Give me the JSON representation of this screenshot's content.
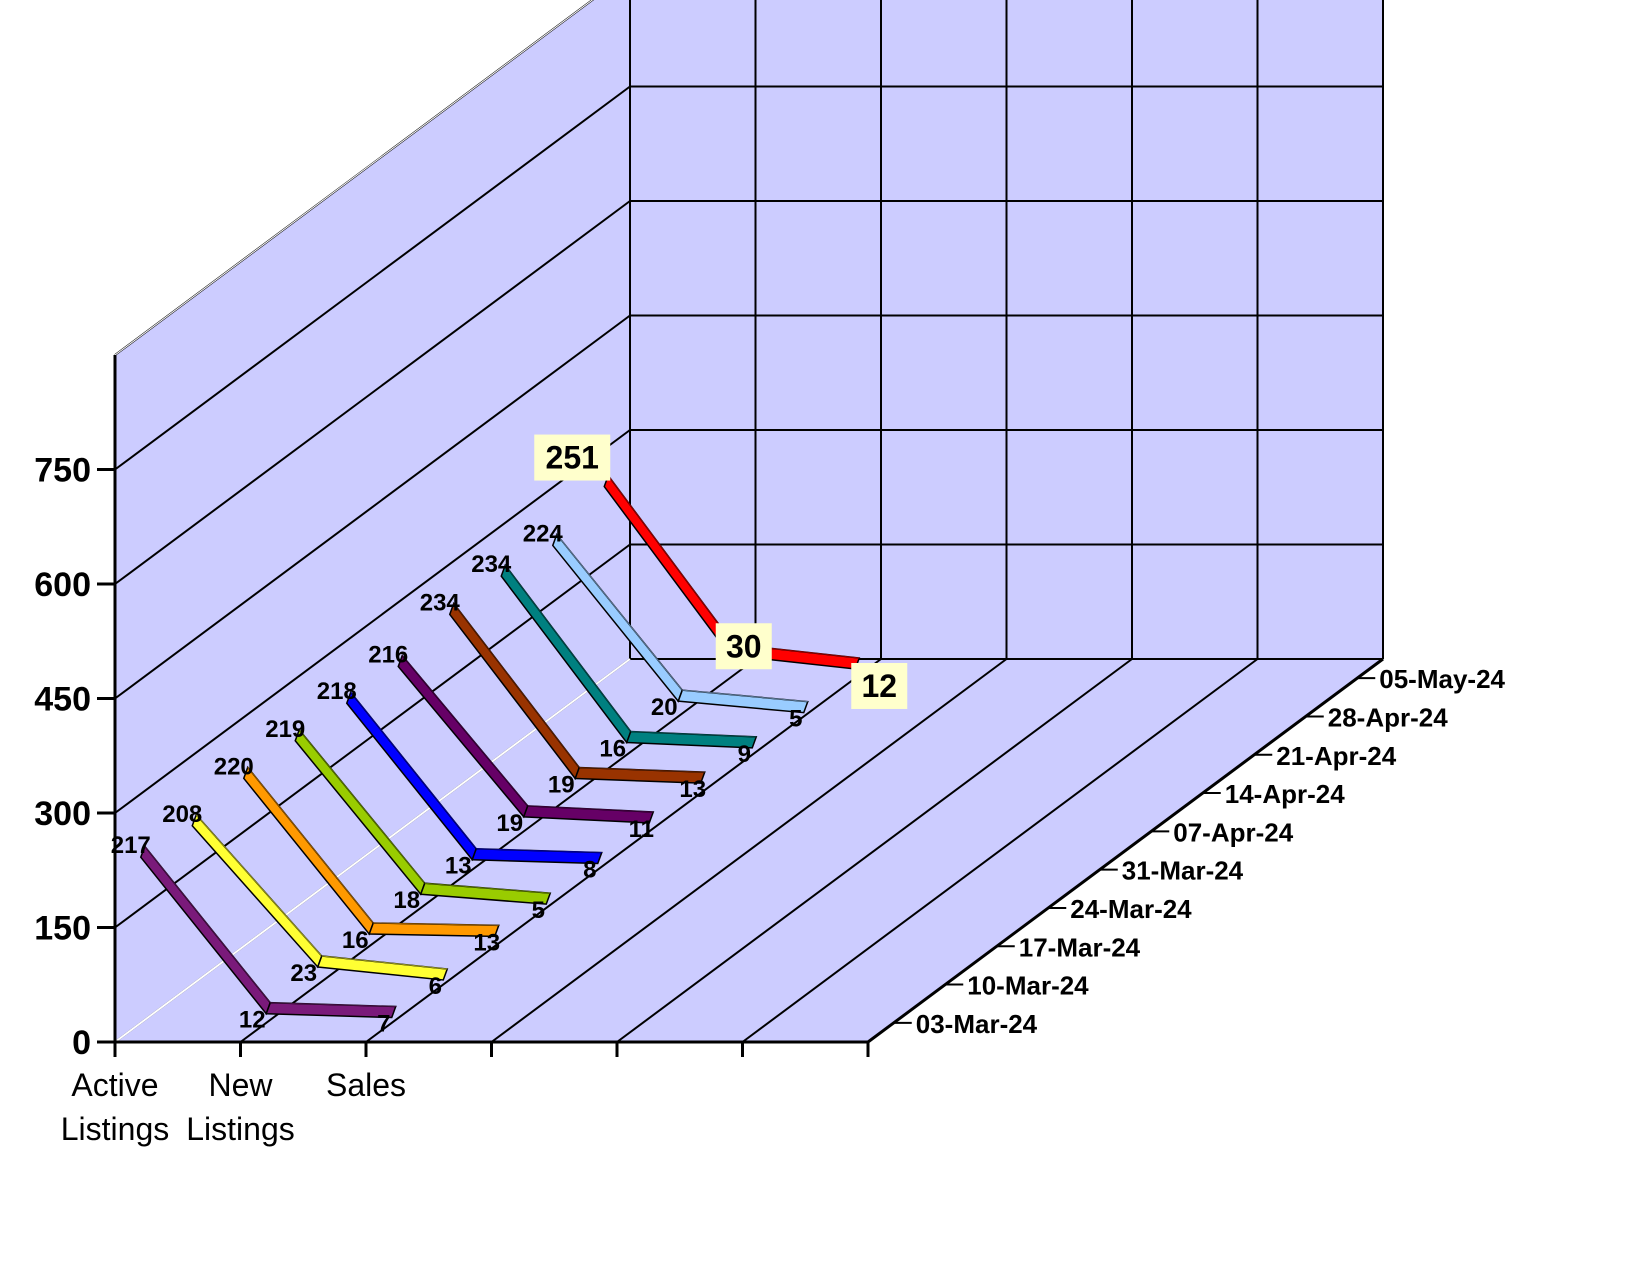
{
  "chart_data": {
    "type": "line",
    "title": "",
    "xlabel": "",
    "ylabel": "",
    "categories": [
      "Active Listings",
      "New Listings",
      "Sales"
    ],
    "category_lines": [
      [
        "Active",
        "Listings"
      ],
      [
        "New",
        "Listings"
      ],
      [
        "Sales"
      ]
    ],
    "y_ticks": [
      "0",
      "150",
      "300",
      "450",
      "600",
      "750"
    ],
    "ylim": [
      0,
      900
    ],
    "grid": true,
    "projection": "3d",
    "series": [
      {
        "name": "03-Mar-24",
        "values": [
          217,
          12,
          7
        ],
        "color": "#7a1a7a"
      },
      {
        "name": "10-Mar-24",
        "values": [
          208,
          23,
          6
        ],
        "color": "#ffff33"
      },
      {
        "name": "17-Mar-24",
        "values": [
          220,
          16,
          13
        ],
        "color": "#ff9900"
      },
      {
        "name": "24-Mar-24",
        "values": [
          219,
          18,
          5
        ],
        "color": "#99cc00"
      },
      {
        "name": "31-Mar-24",
        "values": [
          218,
          13,
          8
        ],
        "color": "#0000ff"
      },
      {
        "name": "07-Apr-24",
        "values": [
          216,
          19,
          11
        ],
        "color": "#660066"
      },
      {
        "name": "14-Apr-24",
        "values": [
          234,
          19,
          13
        ],
        "color": "#993300"
      },
      {
        "name": "21-Apr-24",
        "values": [
          234,
          16,
          9
        ],
        "color": "#008080"
      },
      {
        "name": "28-Apr-24",
        "values": [
          224,
          20,
          5
        ],
        "color": "#99ccff"
      },
      {
        "name": "05-May-24",
        "values": [
          251,
          30,
          12
        ],
        "color": "#ff0000",
        "highlight": true
      }
    ],
    "colors": {
      "wall": "#ccccff",
      "grid_line": "#000000",
      "highlight_label_bg": "#ffffcc"
    }
  }
}
